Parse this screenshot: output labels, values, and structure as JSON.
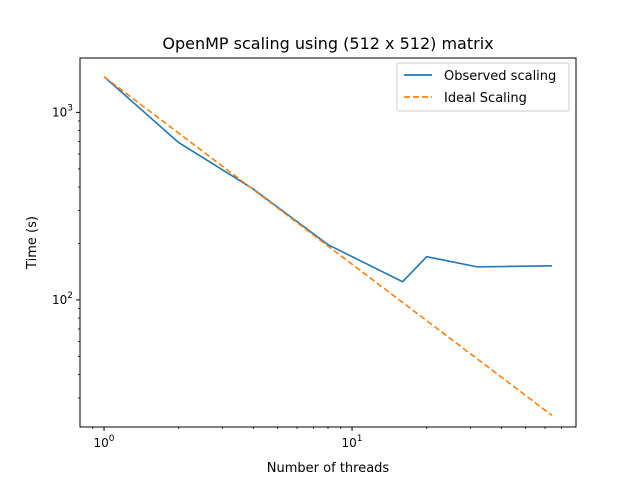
{
  "chart_data": {
    "type": "line",
    "title": "OpenMP scaling using (512 x 512) matrix",
    "xlabel": "Number of threads",
    "ylabel": "Time (s)",
    "xscale": "log",
    "yscale": "log",
    "xlim": [
      0.8,
      80
    ],
    "ylim": [
      21,
      1950
    ],
    "x_ticks": [
      {
        "value": 1,
        "base": "10",
        "exp": "0"
      },
      {
        "value": 10,
        "base": "10",
        "exp": "1"
      }
    ],
    "y_ticks": [
      {
        "value": 100,
        "base": "10",
        "exp": "2"
      },
      {
        "value": 1000,
        "base": "10",
        "exp": "3"
      }
    ],
    "grid": false,
    "legend_position": "top-right",
    "series": [
      {
        "name": "Observed scaling",
        "color": "#1f77b4",
        "style": "solid",
        "x": [
          1,
          2,
          4,
          8,
          16,
          20,
          32,
          64
        ],
        "y": [
          1550,
          690,
          390,
          197,
          125,
          170,
          150,
          152
        ]
      },
      {
        "name": "Ideal Scaling",
        "color": "#ff7f0e",
        "style": "dashed",
        "x": [
          1,
          2,
          4,
          8,
          16,
          32,
          64
        ],
        "y": [
          1550,
          775,
          387.5,
          193.75,
          96.875,
          48.4375,
          24.21875
        ]
      }
    ]
  }
}
